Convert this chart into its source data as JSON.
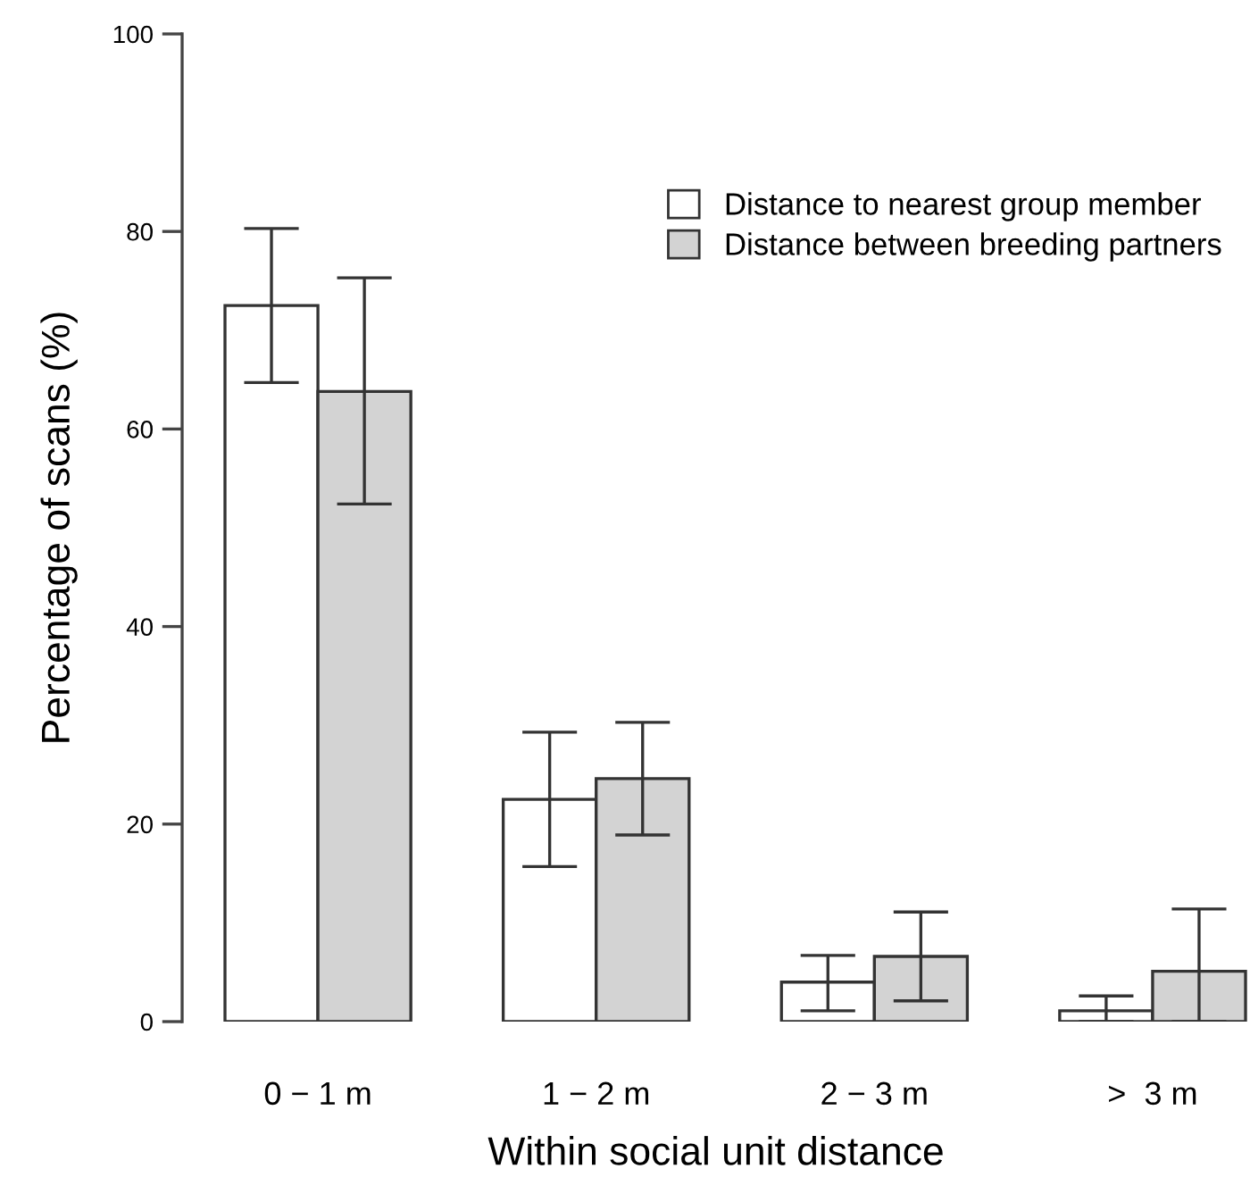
{
  "chart_data": {
    "type": "bar",
    "xlabel": "Within social unit distance",
    "ylabel": "Percentage of scans (%)",
    "categories": [
      "0 − 1 m",
      "1 − 2 m",
      "2 − 3 m",
      ">  3 m"
    ],
    "series": [
      {
        "name": "Distance to nearest group member",
        "color": "#ffffff",
        "values": [
          72.5,
          22.5,
          4.0,
          1.1
        ],
        "errors": [
          [
            64.7,
            80.3
          ],
          [
            15.7,
            29.3
          ],
          [
            1.1,
            6.7
          ],
          [
            0,
            2.6
          ]
        ]
      },
      {
        "name": "Distance between breeding partners",
        "color": "#d3d3d3",
        "values": [
          63.8,
          24.6,
          6.6,
          5.1
        ],
        "errors": [
          [
            52.4,
            75.3
          ],
          [
            18.9,
            30.3
          ],
          [
            2.1,
            11.1
          ],
          [
            0,
            11.4
          ]
        ]
      }
    ],
    "ylim": [
      0,
      100
    ],
    "yticks": [
      0,
      20,
      40,
      60,
      80,
      100
    ],
    "grid": false,
    "legend": "top right"
  }
}
